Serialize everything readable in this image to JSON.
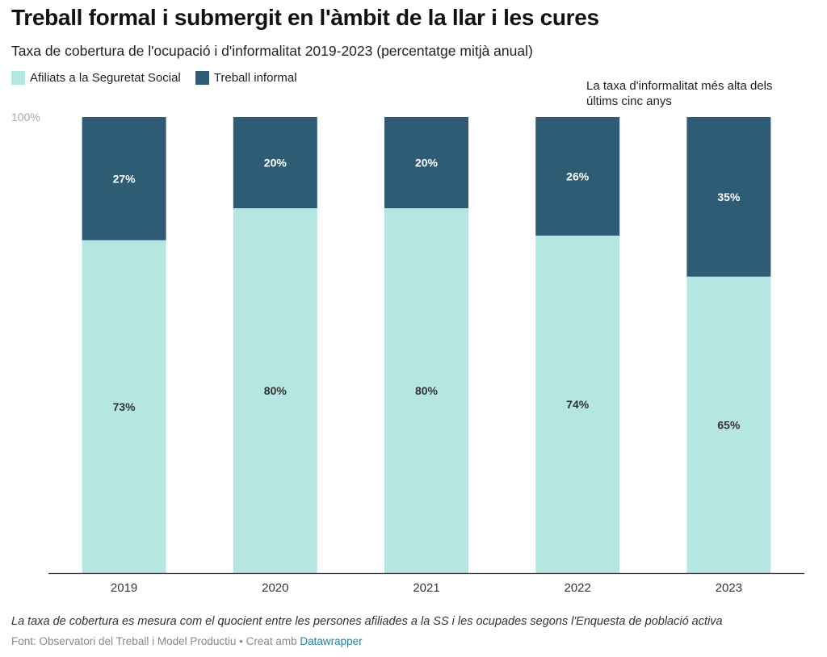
{
  "header": {
    "title": "Treball formal i submergit en l'àmbit de la llar i les cures",
    "subtitle": "Taxa de cobertura de l'ocupació i d'informalitat 2019-2023 (percentatge mitjà anual)"
  },
  "annotation": "La taxa d'informalitat més alta dels últims cinc anys",
  "footer": {
    "note": "La taxa de cobertura es mesura com el quocient entre les persones afiliades a la SS i les ocupades segons l'Enquesta de població activa",
    "source_prefix": "Font: Observatori del Treball i Model Productiu • Creat amb ",
    "source_link": "Datawrapper"
  },
  "chart_data": {
    "type": "bar",
    "stacked": true,
    "categories": [
      "2019",
      "2020",
      "2021",
      "2022",
      "2023"
    ],
    "series": [
      {
        "name": "Afiliats a la Seguretat Social",
        "color": "#b6e6e1",
        "values": [
          73,
          80,
          80,
          74,
          65
        ],
        "labels": [
          "73%",
          "80%",
          "80%",
          "74%",
          "65%"
        ]
      },
      {
        "name": "Treball informal",
        "color": "#2d5c74",
        "values": [
          27,
          20,
          20,
          26,
          35
        ],
        "labels": [
          "27%",
          "20%",
          "20%",
          "26%",
          "35%"
        ]
      }
    ],
    "ylim": [
      0,
      100
    ],
    "y_tick_label": "100%",
    "grid": false,
    "legend_position": "top-left"
  }
}
